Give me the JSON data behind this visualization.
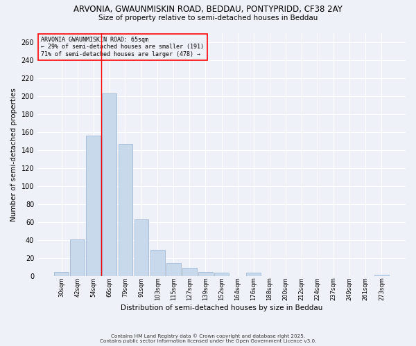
{
  "title1": "ARVONIA, GWAUNMISKIN ROAD, BEDDAU, PONTYPRIDD, CF38 2AY",
  "title2": "Size of property relative to semi-detached houses in Beddau",
  "xlabel": "Distribution of semi-detached houses by size in Beddau",
  "ylabel": "Number of semi-detached properties",
  "categories": [
    "30sqm",
    "42sqm",
    "54sqm",
    "66sqm",
    "79sqm",
    "91sqm",
    "103sqm",
    "115sqm",
    "127sqm",
    "139sqm",
    "152sqm",
    "164sqm",
    "176sqm",
    "188sqm",
    "200sqm",
    "212sqm",
    "224sqm",
    "237sqm",
    "249sqm",
    "261sqm",
    "273sqm"
  ],
  "values": [
    5,
    41,
    156,
    203,
    147,
    63,
    29,
    15,
    9,
    5,
    4,
    0,
    4,
    0,
    0,
    0,
    0,
    0,
    0,
    0,
    2
  ],
  "bar_color": "#c9d9ec",
  "bar_edge_color": "#a0b8d8",
  "redline_index": 3,
  "annotation_title": "ARVONIA GWAUNMISKIN ROAD: 65sqm",
  "annotation_line1": "← 29% of semi-detached houses are smaller (191)",
  "annotation_line2": "71% of semi-detached houses are larger (478) →",
  "ylim": [
    0,
    270
  ],
  "yticks": [
    0,
    20,
    40,
    60,
    80,
    100,
    120,
    140,
    160,
    180,
    200,
    220,
    240,
    260
  ],
  "footnote1": "Contains HM Land Registry data © Crown copyright and database right 2025.",
  "footnote2": "Contains public sector information licensed under the Open Government Licence v3.0.",
  "bg_color": "#eef2f8"
}
